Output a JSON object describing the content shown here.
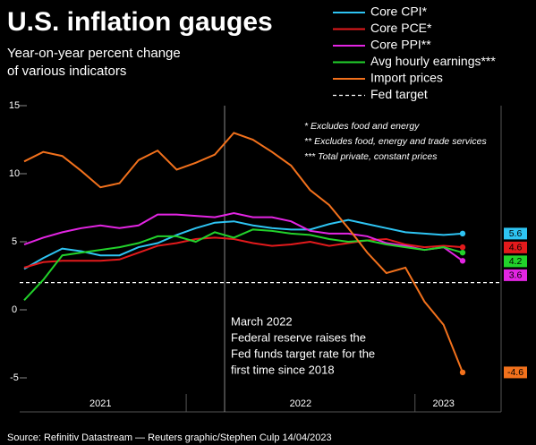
{
  "chart_data": {
    "type": "line",
    "title": "U.S. inflation gauges",
    "subtitle": [
      "Year-on-year percent change",
      "of various indicators"
    ],
    "notes": [
      "* Excludes food and energy",
      "** Excludes food, energy and trade services",
      "*** Total private, constant prices"
    ],
    "annotation": [
      "March 2022",
      "Federal reserve raises the",
      "Fed funds target rate for the",
      "first time since 2018"
    ],
    "source": "Source: Refinitiv Datastream — Reuters graphic/Stephen Culp 14/04/2023",
    "categories": [
      "2021",
      null,
      null,
      null,
      null,
      null,
      null,
      null,
      null,
      "2022",
      null,
      null,
      null,
      null,
      null,
      null,
      null,
      null,
      null,
      null,
      null,
      "2023",
      null,
      null
    ],
    "ylim": [
      -7.5,
      15
    ],
    "yticks": [
      15,
      10,
      5,
      0,
      -5
    ],
    "series": [
      {
        "name": "Core CPI*",
        "color": "#2ec4f3",
        "values": [
          3.0,
          3.8,
          4.5,
          4.3,
          4.0,
          4.0,
          4.6,
          4.9,
          5.5,
          6.0,
          6.4,
          6.5,
          6.2,
          6.0,
          5.9,
          5.9,
          6.3,
          6.6,
          6.3,
          6.0,
          5.7,
          5.6,
          5.5,
          5.6
        ]
      },
      {
        "name": "Core PCE*",
        "color": "#e31a1c",
        "values": [
          3.1,
          3.5,
          3.6,
          3.6,
          3.6,
          3.7,
          4.2,
          4.7,
          4.9,
          5.2,
          5.3,
          5.2,
          4.9,
          4.7,
          4.8,
          5.0,
          4.7,
          4.9,
          5.1,
          5.2,
          4.8,
          4.6,
          4.7,
          4.6
        ]
      },
      {
        "name": "Core PPI**",
        "color": "#e325e3",
        "values": [
          4.8,
          5.3,
          5.7,
          6.0,
          6.2,
          6.0,
          6.2,
          7.0,
          7.0,
          6.9,
          6.8,
          7.1,
          6.8,
          6.8,
          6.5,
          5.8,
          5.6,
          5.6,
          5.4,
          4.9,
          4.7,
          4.4,
          4.6,
          3.6
        ]
      },
      {
        "name": "Avg hourly earnings***",
        "color": "#22d22b",
        "values": [
          0.7,
          2.2,
          4.0,
          4.2,
          4.4,
          4.6,
          4.9,
          5.4,
          5.4,
          5.0,
          5.7,
          5.3,
          5.9,
          5.8,
          5.6,
          5.5,
          5.2,
          5.0,
          5.1,
          4.8,
          4.6,
          4.4,
          4.6,
          4.2
        ]
      },
      {
        "name": "Import prices",
        "color": "#f2711c",
        "values": [
          10.9,
          11.6,
          11.3,
          10.2,
          9.0,
          9.3,
          11.0,
          11.7,
          10.3,
          10.8,
          11.4,
          13.0,
          12.5,
          11.6,
          10.6,
          8.8,
          7.7,
          6.0,
          4.2,
          2.7,
          3.1,
          0.6,
          -1.1,
          -4.6
        ]
      }
    ],
    "reference_line": {
      "name": "Fed target",
      "value": 2,
      "color": "#ffffff"
    }
  }
}
